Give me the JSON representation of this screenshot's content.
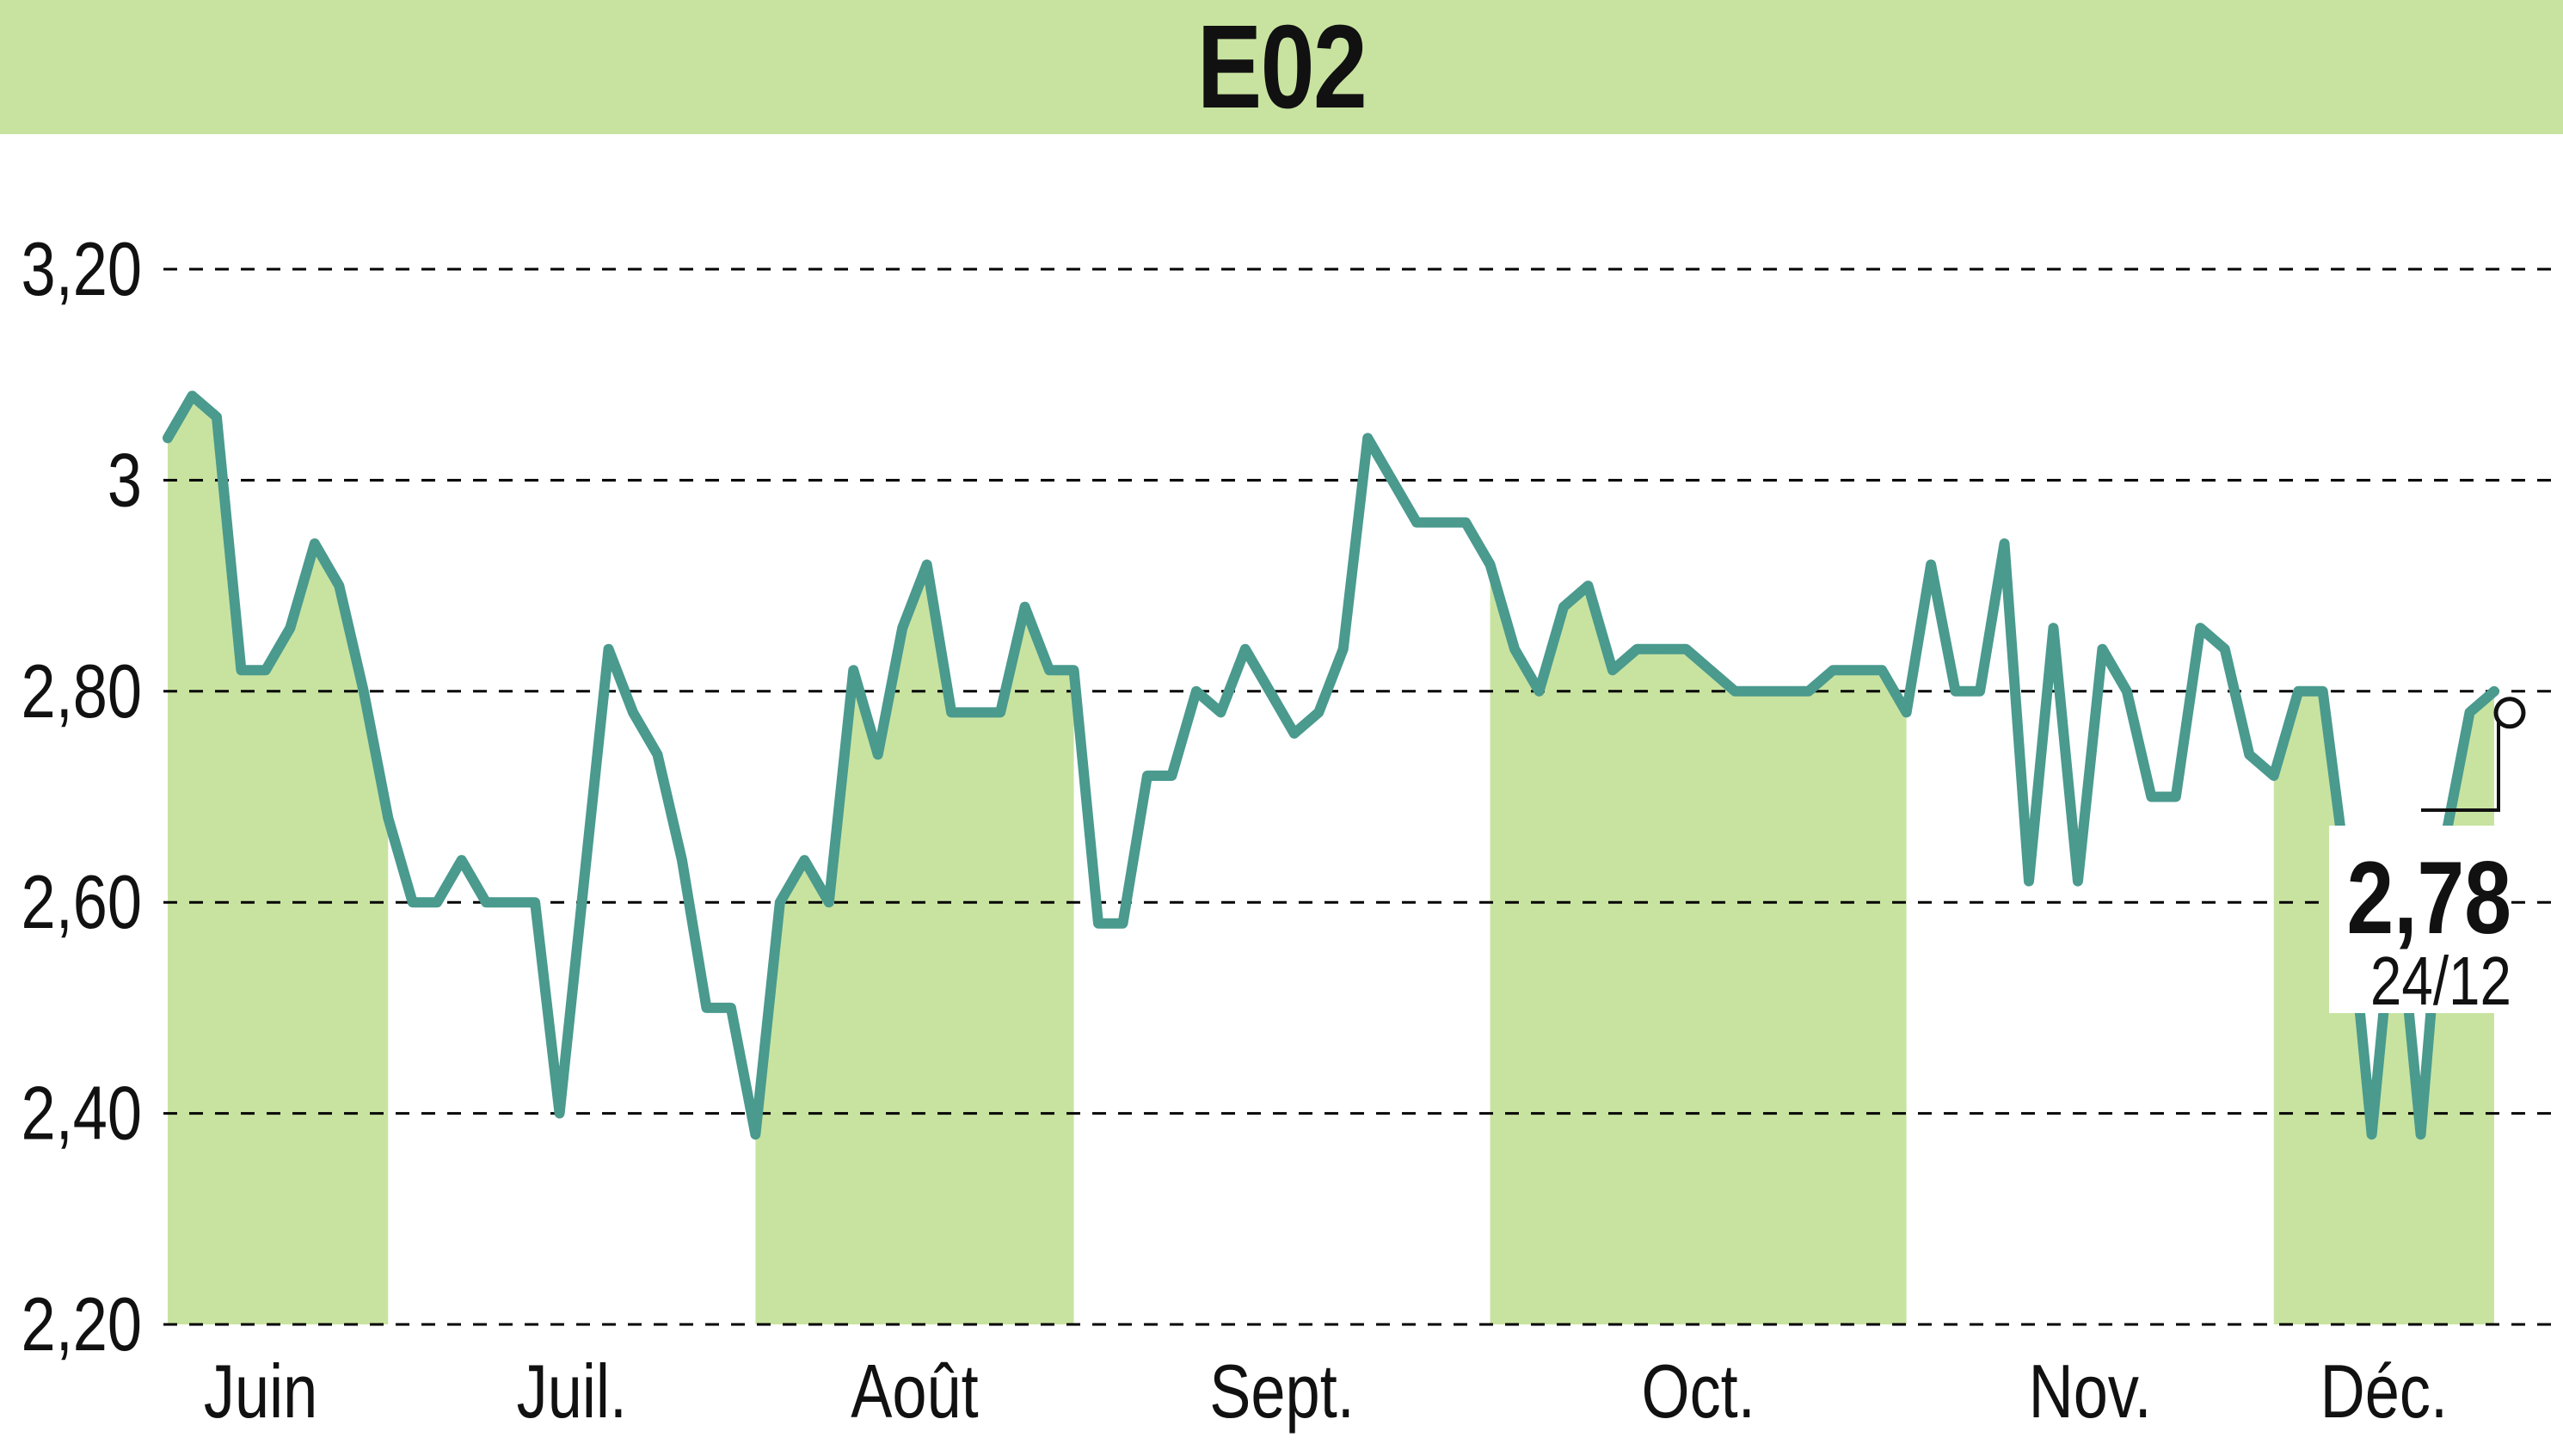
{
  "chart_data": {
    "type": "line",
    "title": "E02",
    "xlabel": "",
    "ylabel": "",
    "ylim": [
      2.2,
      3.2
    ],
    "grid": true,
    "y_ticks": [
      "3,20",
      "3",
      "2,80",
      "2,60",
      "2,40",
      "2,20"
    ],
    "y_tick_values": [
      3.2,
      3.0,
      2.8,
      2.6,
      2.4,
      2.2
    ],
    "month_labels": [
      "Juin",
      "Juil.",
      "Août",
      "Sept.",
      "Oct.",
      "Nov.",
      "Déc."
    ],
    "month_starts": [
      0,
      10,
      24,
      38,
      54,
      72,
      86
    ],
    "shaded_months": [
      0,
      2,
      4,
      6
    ],
    "last_value_label": "2,78",
    "last_date_label": "24/12",
    "colors": {
      "line": "#4a9a8e",
      "fill": "#c8e3a0",
      "title_band": "#c8e3a0",
      "text": "#111111",
      "grid": "#000000"
    },
    "series": [
      {
        "values": [
          3.04,
          3.08,
          3.06,
          2.82,
          2.82,
          2.86,
          2.94,
          2.9,
          2.8,
          2.68,
          2.6,
          2.6,
          2.64,
          2.6,
          2.6,
          2.6,
          2.4,
          2.62,
          2.84,
          2.78,
          2.74,
          2.64,
          2.5,
          2.5,
          2.38,
          2.6,
          2.64,
          2.6,
          2.82,
          2.74,
          2.86,
          2.92,
          2.78,
          2.78,
          2.78,
          2.88,
          2.82,
          2.82,
          2.58,
          2.58,
          2.72,
          2.72,
          2.8,
          2.78,
          2.84,
          2.8,
          2.76,
          2.78,
          2.84,
          3.04,
          3.0,
          2.96,
          2.96,
          2.96,
          2.92,
          2.84,
          2.8,
          2.88,
          2.9,
          2.82,
          2.84,
          2.84,
          2.84,
          2.82,
          2.8,
          2.8,
          2.8,
          2.8,
          2.82,
          2.82,
          2.82,
          2.78,
          2.92,
          2.8,
          2.8,
          2.94,
          2.62,
          2.86,
          2.62,
          2.84,
          2.8,
          2.7,
          2.7,
          2.86,
          2.84,
          2.74,
          2.72,
          2.8,
          2.8,
          2.62,
          2.38,
          2.62,
          2.38,
          2.66,
          2.78,
          2.8
        ]
      }
    ]
  }
}
